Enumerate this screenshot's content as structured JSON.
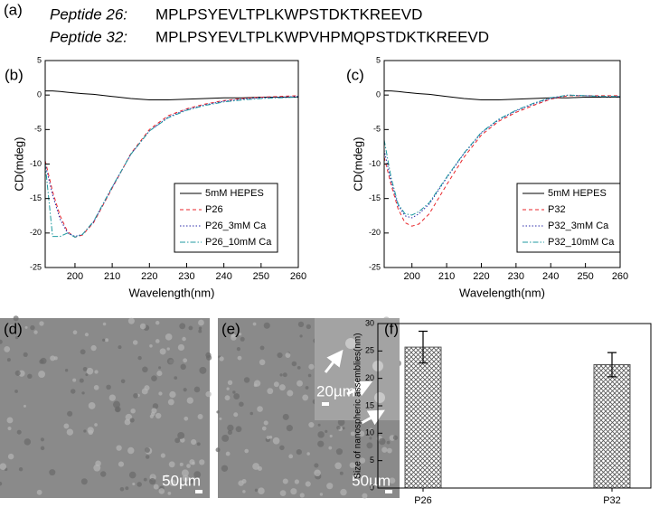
{
  "panel_a": {
    "label": "(a)",
    "peptides": [
      {
        "name": "Peptide 26:",
        "sequence": "MPLPSYEVLTPLKWPSTDKTKREEVD"
      },
      {
        "name": "Peptide 32:",
        "sequence": "MPLPSYEVLTPLKWPVHPMQPSTDKTKREEVD"
      }
    ]
  },
  "micrographs": [
    {
      "label": "(d)",
      "scale": "50µm"
    },
    {
      "label": "(e)",
      "scale": "50µm",
      "inset_scale": "20µm"
    }
  ],
  "chart_data": [
    {
      "type": "line",
      "label": "(b)",
      "x_label": "Wavelength(nm)",
      "y_label": "CD(mdeg)",
      "xlim": [
        192,
        260
      ],
      "xticks": [
        200,
        210,
        220,
        230,
        240,
        250,
        260
      ],
      "ylim": [
        -25,
        5
      ],
      "yticks": [
        -25,
        -20,
        -15,
        -10,
        -5,
        0,
        5
      ],
      "legend": "lower right",
      "x": [
        192,
        194,
        196,
        198,
        200,
        202,
        205,
        210,
        215,
        220,
        225,
        230,
        235,
        240,
        245,
        250,
        255,
        260
      ],
      "series": [
        {
          "name": "5mM HEPES",
          "color": "#000000",
          "dash": "solid",
          "values": [
            0.6,
            0.6,
            0.5,
            0.4,
            0.3,
            0.2,
            0.1,
            -0.2,
            -0.5,
            -0.7,
            -0.7,
            -0.6,
            -0.5,
            -0.4,
            -0.4,
            -0.3,
            -0.3,
            -0.3
          ]
        },
        {
          "name": "P26",
          "color": "#e8262a",
          "dash": "dashed",
          "values": [
            -9.5,
            -14,
            -17.5,
            -19.8,
            -20.6,
            -20.3,
            -18.5,
            -13.5,
            -8.5,
            -5,
            -3,
            -2,
            -1.3,
            -0.8,
            -0.5,
            -0.3,
            -0.2,
            -0.1
          ]
        },
        {
          "name": "P26_3mM Ca",
          "color": "#2b2ba8",
          "dash": "dotted",
          "values": [
            -10,
            -14.5,
            -18,
            -20,
            -20.5,
            -20.2,
            -18.4,
            -13.4,
            -8.6,
            -5.2,
            -3.2,
            -2.1,
            -1.4,
            -0.9,
            -0.6,
            -0.4,
            -0.3,
            -0.2
          ]
        },
        {
          "name": "P26_10mM Ca",
          "color": "#1f9aa0",
          "dash": "dashdot",
          "values": [
            -10,
            -20.5,
            -20.5,
            -20,
            -20.6,
            -20.2,
            -18.3,
            -13.3,
            -8.6,
            -5.2,
            -3.3,
            -2.2,
            -1.5,
            -1,
            -0.7,
            -0.5,
            -0.4,
            -0.3
          ]
        }
      ]
    },
    {
      "type": "line",
      "label": "(c)",
      "x_label": "Wavelength(nm)",
      "y_label": "CD(mdeg)",
      "xlim": [
        192,
        260
      ],
      "xticks": [
        200,
        210,
        220,
        230,
        240,
        250,
        260
      ],
      "ylim": [
        -25,
        5
      ],
      "yticks": [
        -25,
        -20,
        -15,
        -10,
        -5,
        0,
        5
      ],
      "legend": "lower right",
      "x": [
        192,
        194,
        196,
        198,
        200,
        202,
        205,
        210,
        215,
        220,
        225,
        230,
        235,
        240,
        245,
        250,
        255,
        260
      ],
      "series": [
        {
          "name": "5mM HEPES",
          "color": "#000000",
          "dash": "solid",
          "values": [
            0.6,
            0.6,
            0.5,
            0.4,
            0.3,
            0.2,
            0.1,
            -0.2,
            -0.5,
            -0.7,
            -0.7,
            -0.6,
            -0.5,
            -0.4,
            -0.4,
            -0.3,
            -0.3,
            -0.3
          ]
        },
        {
          "name": "P32",
          "color": "#e8262a",
          "dash": "dashed",
          "values": [
            -9,
            -13,
            -16.5,
            -18.5,
            -19,
            -18.7,
            -17.2,
            -13,
            -9,
            -5.8,
            -3.8,
            -2.5,
            -1.5,
            -0.6,
            -0.1,
            -0.1,
            -0.1,
            -0.1
          ]
        },
        {
          "name": "P32_3mM Ca",
          "color": "#2b2ba8",
          "dash": "dotted",
          "values": [
            -8,
            -12.5,
            -16,
            -17.5,
            -17.8,
            -17.2,
            -15.8,
            -12,
            -8.5,
            -5.5,
            -3.6,
            -2.3,
            -1.3,
            -0.5,
            0,
            -0.1,
            -0.2,
            -0.2
          ]
        },
        {
          "name": "P32_10mM Ca",
          "color": "#1f9aa0",
          "dash": "dashdot",
          "values": [
            -6.5,
            -12,
            -15.8,
            -17.2,
            -17.4,
            -16.9,
            -15.6,
            -11.9,
            -8.4,
            -5.4,
            -3.5,
            -2.2,
            -1.2,
            -0.4,
            0,
            -0.1,
            -0.2,
            -0.2
          ]
        }
      ]
    },
    {
      "type": "bar",
      "label": "(f)",
      "y_label": "Size of nanospheric assemblies(nm)",
      "categories": [
        "P26",
        "P32"
      ],
      "values": [
        25.7,
        22.5
      ],
      "errors": [
        2.9,
        2.2
      ],
      "ylim": [
        0,
        30
      ],
      "yticks": [
        0,
        5,
        10,
        15,
        20,
        25,
        30
      ],
      "color": "#555555"
    }
  ]
}
